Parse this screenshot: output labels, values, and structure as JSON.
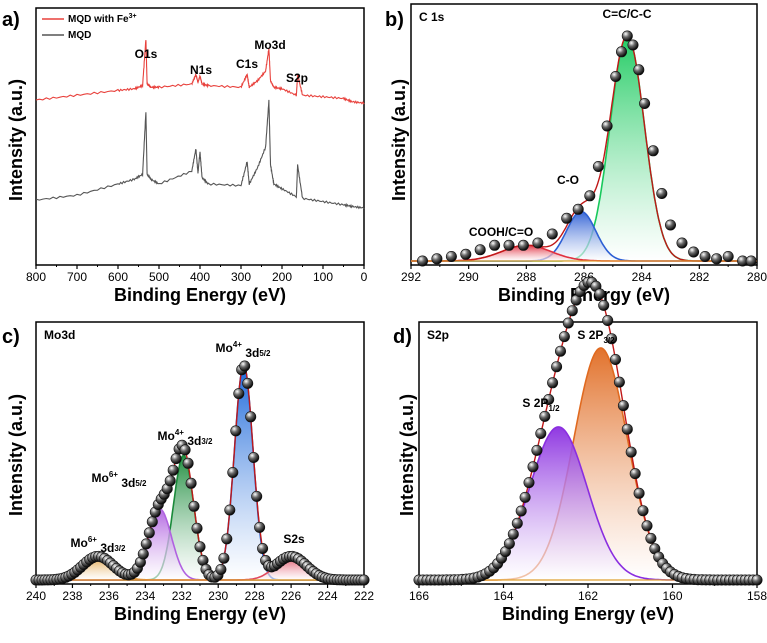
{
  "chart_data": [
    {
      "panel": "a)",
      "type": "line",
      "xlabel": "Binding Energy (eV)",
      "ylabel": "Intensity (a.u.)",
      "xlim": [
        800,
        0
      ],
      "xticks": [
        "800",
        "700",
        "600",
        "500",
        "400",
        "300",
        "200",
        "100",
        "0"
      ],
      "legend": [
        {
          "name": "MQD with Fe",
          "sup": "3+",
          "color": "#e8413c"
        },
        {
          "name": "MQD",
          "color": "#555555"
        }
      ],
      "annotations": [
        "O1s",
        "N1s",
        "C1s",
        "Mo3d",
        "S2p"
      ],
      "series": [
        {
          "name": "MQD with Fe3+",
          "color": "#e8413c",
          "x": [
            800,
            700,
            600,
            560,
            540,
            532,
            529,
            520,
            500,
            420,
            410,
            405,
            400,
            395,
            380,
            300,
            285,
            280,
            260,
            240,
            232,
            228,
            220,
            200,
            165,
            162,
            150,
            100,
            50,
            30,
            0
          ],
          "y": [
            0.0,
            0.03,
            0.06,
            0.07,
            0.09,
            0.38,
            0.1,
            0.08,
            0.08,
            0.1,
            0.16,
            0.11,
            0.15,
            0.1,
            0.09,
            0.08,
            0.16,
            0.08,
            0.12,
            0.18,
            0.32,
            0.12,
            0.08,
            0.07,
            0.03,
            0.16,
            0.03,
            0.02,
            0.01,
            -0.01,
            -0.02
          ]
        },
        {
          "name": "MQD",
          "color": "#555555",
          "x": [
            800,
            700,
            600,
            560,
            540,
            532,
            529,
            520,
            500,
            420,
            410,
            405,
            400,
            395,
            380,
            300,
            285,
            280,
            260,
            240,
            232,
            228,
            220,
            200,
            165,
            162,
            150,
            100,
            50,
            30,
            0
          ],
          "y": [
            0.0,
            0.03,
            0.1,
            0.13,
            0.16,
            0.55,
            0.16,
            0.13,
            0.1,
            0.18,
            0.32,
            0.17,
            0.3,
            0.14,
            0.1,
            0.09,
            0.24,
            0.1,
            0.2,
            0.33,
            0.62,
            0.22,
            0.1,
            0.07,
            0.02,
            0.22,
            0.01,
            -0.01,
            -0.03,
            -0.04,
            -0.05
          ]
        }
      ]
    },
    {
      "panel": "b)",
      "type": "scatter",
      "title": "C 1s",
      "xlabel": "Binding Energy (eV)",
      "ylabel": "Intensity (a.u.)",
      "xlim": [
        292,
        280
      ],
      "xticks": [
        "292",
        "290",
        "288",
        "286",
        "284",
        "282",
        "280"
      ],
      "peaks": [
        {
          "label": "C=C/C-C",
          "center": 284.5,
          "height": 1.0,
          "fwhm": 1.4,
          "color": "#18c95c"
        },
        {
          "label": "C-O",
          "center": 286.1,
          "height": 0.22,
          "fwhm": 1.2,
          "color": "#2d5fd4"
        },
        {
          "label": "COOH/C=O",
          "center": 288.0,
          "height": 0.07,
          "fwhm": 2.0,
          "color": "#e03040"
        }
      ],
      "points": {
        "x": [
          291.6,
          291.1,
          290.6,
          290.1,
          289.6,
          289.1,
          288.6,
          288.1,
          287.6,
          287.1,
          286.6,
          286.2,
          285.8,
          285.5,
          285.2,
          284.9,
          284.7,
          284.5,
          284.3,
          284.1,
          283.9,
          283.6,
          283.3,
          283.0,
          282.6,
          282.2,
          281.8,
          281.4,
          281.0,
          280.5,
          280.2
        ],
        "y": [
          0.0,
          0.01,
          0.02,
          0.03,
          0.05,
          0.07,
          0.07,
          0.07,
          0.08,
          0.12,
          0.19,
          0.23,
          0.29,
          0.42,
          0.6,
          0.82,
          0.93,
          1.0,
          0.96,
          0.85,
          0.7,
          0.49,
          0.3,
          0.16,
          0.08,
          0.04,
          0.02,
          0.01,
          0.02,
          0.0,
          0.0
        ]
      }
    },
    {
      "panel": "c)",
      "type": "scatter",
      "title": "Mo3d",
      "xlabel": "Binding Energy (eV)",
      "ylabel": "Intensity (a.u.)",
      "xlim": [
        240,
        222
      ],
      "xticks": [
        "240",
        "238",
        "236",
        "234",
        "232",
        "230",
        "228",
        "226",
        "224",
        "222"
      ],
      "peaks": [
        {
          "label": "Mo4+ 3d5/2",
          "center": 228.6,
          "height": 1.0,
          "fwhm": 1.2,
          "color": "#1060d8"
        },
        {
          "label": "Mo4+ 3d3/2",
          "center": 231.9,
          "height": 0.58,
          "fwhm": 1.3,
          "color": "#1a8a3a"
        },
        {
          "label": "Mo6+ 3d5/2",
          "center": 233.2,
          "height": 0.33,
          "fwhm": 1.5,
          "color": "#b062e0"
        },
        {
          "label": "Mo6+ 3d3/2",
          "center": 236.6,
          "height": 0.11,
          "fwhm": 2.0,
          "color": "#e0a040"
        },
        {
          "label": "S2s",
          "center": 226.0,
          "height": 0.11,
          "fwhm": 2.0,
          "color": "#e04a60"
        }
      ],
      "annotation_labels": [
        {
          "base": "Mo",
          "sup": "4+",
          "main": " 3d",
          "sub": "5/2"
        },
        {
          "base": "Mo",
          "sup": "4+",
          "main": " 3d",
          "sub": "3/2"
        },
        {
          "base": "Mo",
          "sup": "6+",
          "main": " 3d",
          "sub": "5/2"
        },
        {
          "base": "Mo",
          "sup": "6+",
          "main": " 3d",
          "sub": "3/2"
        },
        {
          "base": "S2s",
          "sup": "",
          "main": "",
          "sub": ""
        }
      ],
      "points_from": "envelope"
    },
    {
      "panel": "d)",
      "type": "scatter",
      "title": "S2p",
      "xlabel": "Binding Energy (eV)",
      "ylabel": "Intensity (a.u.)",
      "xlim": [
        166,
        158
      ],
      "xticks": [
        "166",
        "164",
        "162",
        "160",
        "158"
      ],
      "peaks": [
        {
          "label": "S 2P3/2",
          "center": 161.7,
          "height": 1.0,
          "fwhm": 1.5,
          "color": "#e06a20"
        },
        {
          "label": "S 2P1/2",
          "center": 162.7,
          "height": 0.66,
          "fwhm": 1.6,
          "color": "#8a2ee0"
        }
      ],
      "annotation_labels": [
        {
          "base": "S 2P",
          "sup": "",
          "main": "",
          "sub": "3/2"
        },
        {
          "base": "S 2P",
          "sup": "",
          "main": "",
          "sub": "1/2"
        }
      ],
      "points_from": "envelope"
    }
  ]
}
